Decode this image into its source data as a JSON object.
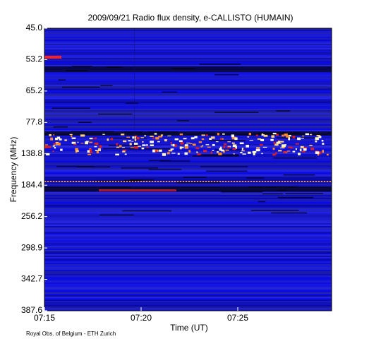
{
  "chart_data": {
    "type": "spectrogram",
    "title": "2009/09/21  Radio flux density, e-CALLISTO (HUMAIN)",
    "y_label": "Frequency (MHz)",
    "x_label": "Time (UT)",
    "y_tick_labels": [
      "45.0",
      "53.2",
      "65.2",
      "77.8",
      "138.8",
      "184.4",
      "256.2",
      "298.9",
      "342.7",
      "387.6"
    ],
    "x_tick_labels": [
      "07:15",
      "07:20",
      "07:25"
    ],
    "credit": "Royal Obs. of Belgium - ETH Zurich"
  }
}
